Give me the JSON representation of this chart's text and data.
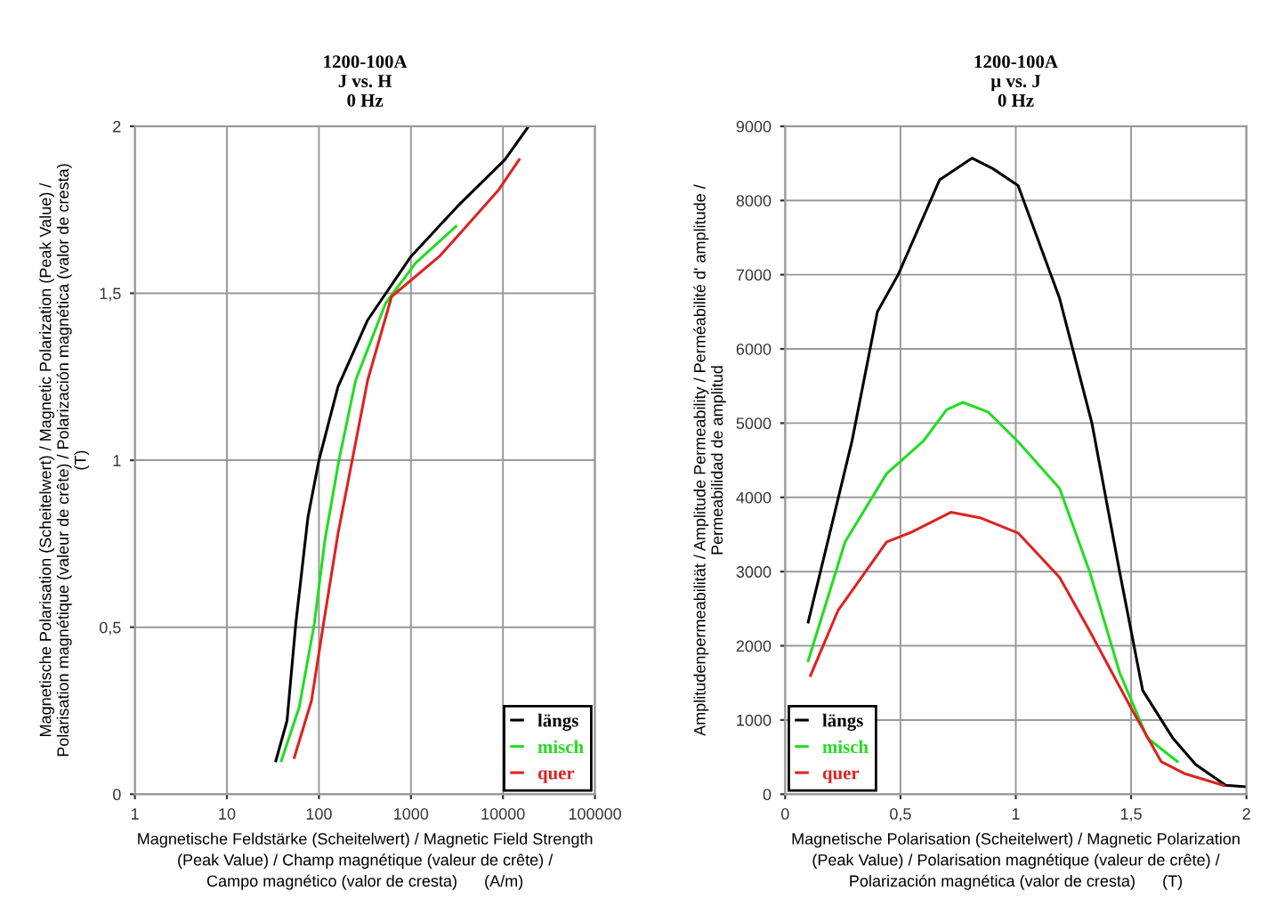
{
  "chart_data": [
    {
      "type": "line",
      "title": "1200-100A\nJ vs. H\n0 Hz",
      "xlabel": "Magnetische Feldstärke (Scheitelwert) / Magnetic Field Strength\n(Peak Value) / Champ magnétique (valeur de crête) /\nCampo magnético (valor de cresta)      (A/m)",
      "ylabel": "Magnetische Polarisation (Scheitelwert) / Magnetic Polarization (Peak Value) /\nPolarisation magnétique (valeur de crête) / Polarización magnética (valor de cresta)\n(T)",
      "log": "x",
      "xlim": [
        1,
        100000
      ],
      "xticks": [
        1,
        10,
        100,
        1000,
        10000,
        100000
      ],
      "ylim": [
        0,
        2
      ],
      "yticks": [
        0,
        {
          "value": 0.5,
          "label": "0,5"
        },
        1,
        {
          "value": 1.5,
          "label": "1,5"
        },
        2
      ],
      "grid": true,
      "legend": "bottom right",
      "marker": "none",
      "line_style": "solid",
      "series": [
        {
          "name": "längs",
          "color": "#000000",
          "x": [
            34,
            45,
            56,
            76,
            100,
            161,
            339,
            1000,
            3200,
            10500,
            19000
          ],
          "values": [
            0.1,
            0.22,
            0.51,
            0.83,
            1.0,
            1.22,
            1.42,
            1.61,
            1.76,
            1.9,
            2.0
          ]
        },
        {
          "name": "misch",
          "color": "#22dd22",
          "x": [
            39,
            61,
            89,
            116,
            165,
            251,
            530,
            1120,
            3080
          ],
          "values": [
            0.1,
            0.26,
            0.51,
            0.76,
            1.0,
            1.24,
            1.47,
            1.59,
            1.7
          ]
        },
        {
          "name": "quer",
          "color": "#dd2222",
          "x": [
            54,
            83,
            112,
            161,
            230,
            339,
            616,
            2030,
            3700,
            9000,
            15000
          ],
          "values": [
            0.11,
            0.28,
            0.51,
            0.78,
            1.0,
            1.24,
            1.49,
            1.61,
            1.69,
            1.81,
            1.9
          ]
        }
      ]
    },
    {
      "type": "line",
      "title": "1200-100A\nµ vs. J\n0 Hz",
      "xlabel": "Magnetische Polarisation (Scheitelwert) / Magnetic Polarization\n(Peak Value) / Polarisation magnétique (valeur de crête) /\nPolarización magnética (valor de cresta)      (T)",
      "ylabel": "Amplitudenpermeabilität / Amplitude Permeability / Perméabilité d' amplitude /\nPermeabilidad de amplitud",
      "xlim": [
        0,
        2
      ],
      "xticks": [
        0,
        {
          "value": 0.5,
          "label": "0,5"
        },
        1,
        {
          "value": 1.5,
          "label": "1,5"
        },
        2
      ],
      "ylim": [
        0,
        9000
      ],
      "yticks": [
        0,
        1000,
        2000,
        3000,
        4000,
        5000,
        6000,
        7000,
        8000,
        9000
      ],
      "grid": true,
      "legend": "bottom left",
      "marker": "none",
      "line_style": "solid",
      "series": [
        {
          "name": "längs",
          "color": "#000000",
          "x": [
            0.1,
            0.2,
            0.29,
            0.4,
            0.49,
            0.67,
            0.81,
            0.9,
            1.01,
            1.19,
            1.33,
            1.45,
            1.55,
            1.68,
            1.78,
            1.91,
            2.0
          ],
          "values": [
            2320,
            3600,
            4760,
            6500,
            7000,
            8280,
            8570,
            8430,
            8200,
            6680,
            5000,
            3000,
            1400,
            760,
            400,
            120,
            100
          ]
        },
        {
          "name": "misch",
          "color": "#22dd22",
          "x": [
            0.1,
            0.26,
            0.44,
            0.6,
            0.7,
            0.77,
            0.88,
            1.01,
            1.19,
            1.32,
            1.45,
            1.57,
            1.7
          ],
          "values": [
            1800,
            3400,
            4320,
            4760,
            5180,
            5280,
            5150,
            4750,
            4120,
            3000,
            1640,
            760,
            440
          ]
        },
        {
          "name": "quer",
          "color": "#dd2222",
          "x": [
            0.11,
            0.23,
            0.44,
            0.54,
            0.72,
            0.85,
            1.01,
            1.19,
            1.32,
            1.5,
            1.63,
            1.73,
            1.9
          ],
          "values": [
            1600,
            2480,
            3400,
            3520,
            3800,
            3720,
            3520,
            2920,
            2200,
            1160,
            440,
            280,
            120
          ]
        }
      ]
    }
  ]
}
